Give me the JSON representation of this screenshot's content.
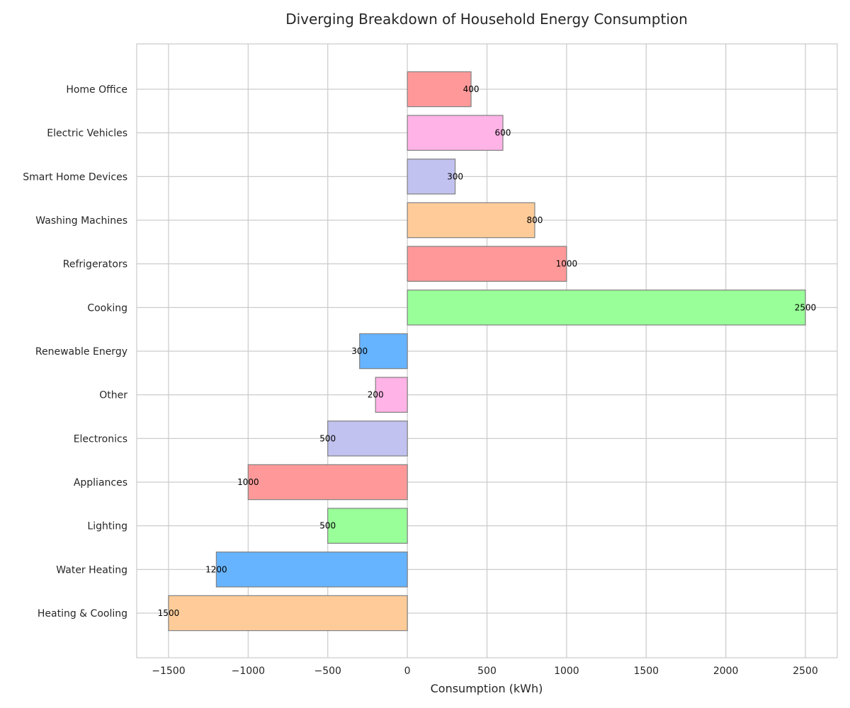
{
  "chart_data": {
    "type": "bar",
    "orientation": "horizontal",
    "title": "Diverging Breakdown of Household Energy Consumption",
    "xlabel": "Consumption (kWh)",
    "ylabel": "",
    "xlim": [
      -1700,
      2700
    ],
    "x_ticks": [
      -1500,
      -1000,
      -500,
      0,
      500,
      1000,
      1500,
      2000,
      2500
    ],
    "x_tick_labels": [
      "−1500",
      "−1000",
      "−500",
      "0",
      "500",
      "1000",
      "1500",
      "2000",
      "2500"
    ],
    "grid": true,
    "categories": [
      "Heating & Cooling",
      "Water Heating",
      "Lighting",
      "Appliances",
      "Electronics",
      "Other",
      "Renewable Energy",
      "Cooking",
      "Refrigerators",
      "Washing Machines",
      "Smart Home Devices",
      "Electric Vehicles",
      "Home Office"
    ],
    "values": [
      -1500,
      -1200,
      -500,
      -1000,
      -500,
      -200,
      -300,
      2500,
      1000,
      800,
      300,
      600,
      400
    ],
    "data_labels": [
      "1500",
      "1200",
      "500",
      "1000",
      "500",
      "200",
      "300",
      "2500",
      "1000",
      "800",
      "300",
      "600",
      "400"
    ],
    "colors": [
      "#ffcc99",
      "#66b3ff",
      "#99ff99",
      "#ff9999",
      "#c2c2f0",
      "#ffb3e6",
      "#66b3ff",
      "#99ff99",
      "#ff9999",
      "#ffcc99",
      "#c2c2f0",
      "#ffb3e6",
      "#ff9999"
    ],
    "bar_edge_color": "#808080",
    "grid_color": "#cccccc",
    "frame_color": "#cccccc"
  }
}
